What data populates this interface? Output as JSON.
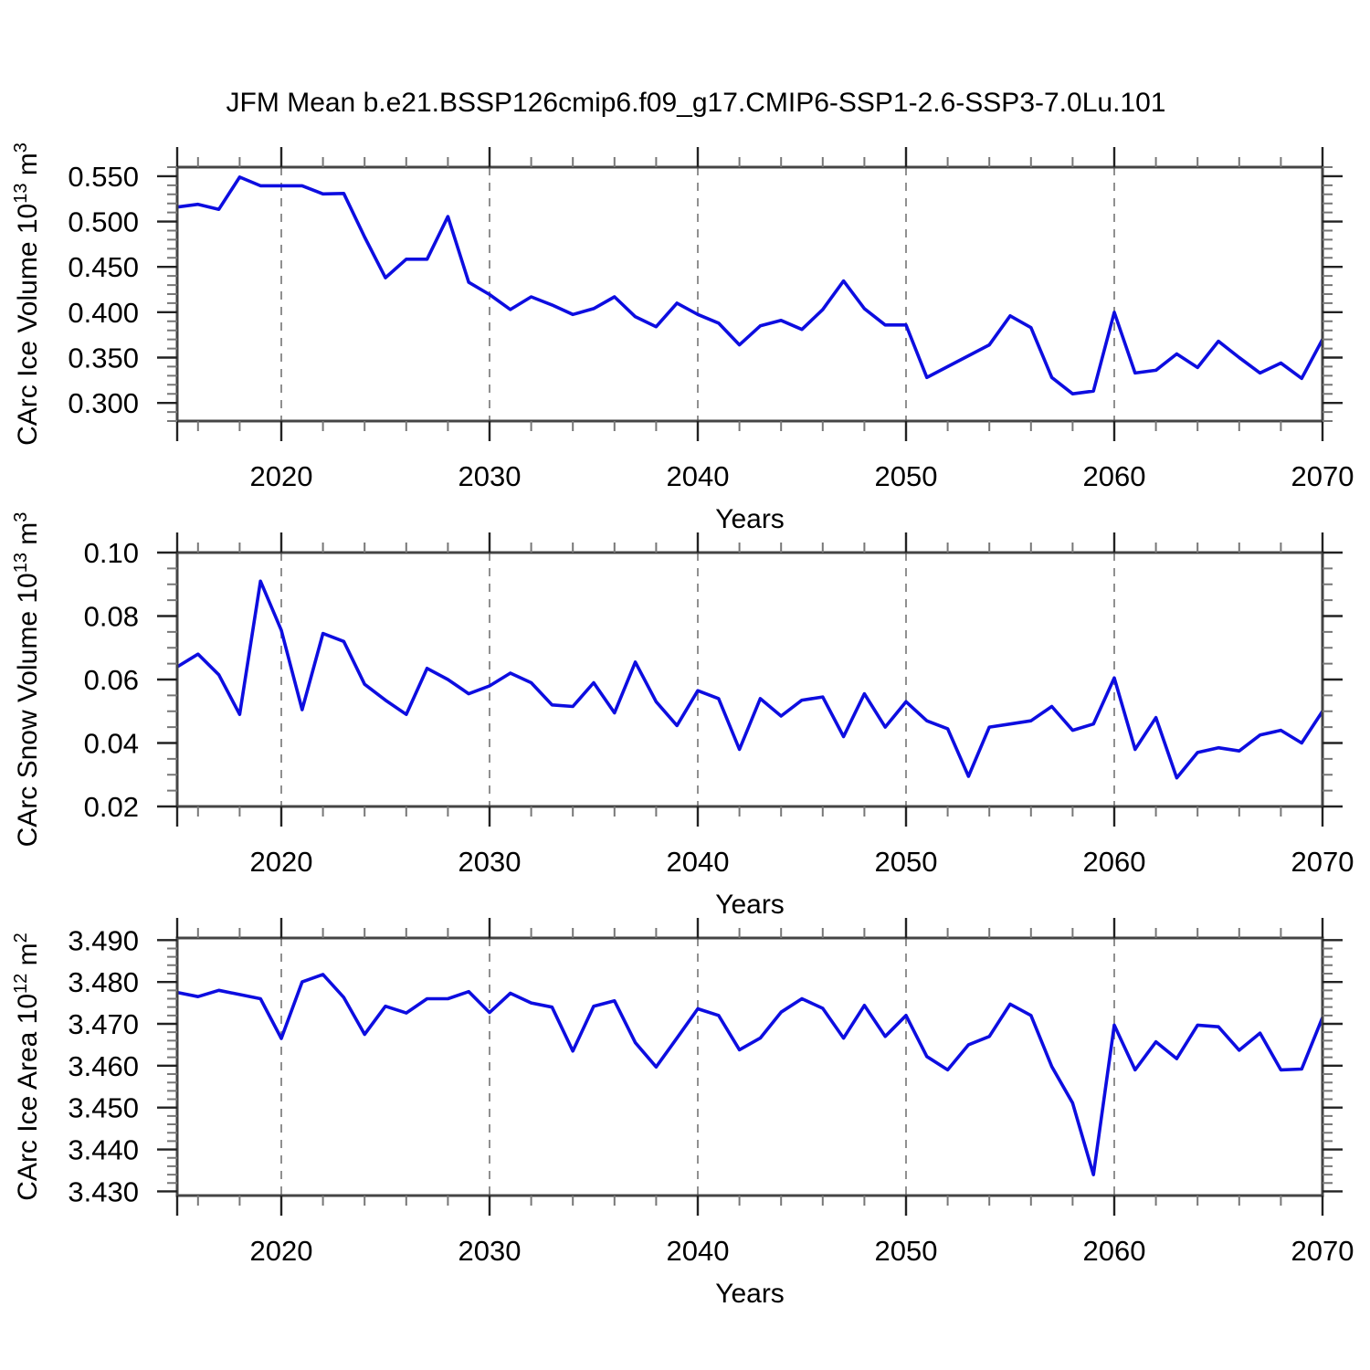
{
  "title": "JFM Mean b.e21.BSSP126cmip6.f09_g17.CMIP6-SSP1-2.6-SSP3-7.0Lu.101",
  "colors": {
    "line": "#0d0de0",
    "grid": "#909090",
    "frame": "#444444",
    "tick_major": "#222222",
    "tick_minor": "#777777",
    "text": "#000000"
  },
  "years": [
    2015,
    2016,
    2017,
    2018,
    2019,
    2020,
    2021,
    2022,
    2023,
    2024,
    2025,
    2026,
    2027,
    2028,
    2029,
    2030,
    2031,
    2032,
    2033,
    2034,
    2035,
    2036,
    2037,
    2038,
    2039,
    2040,
    2041,
    2042,
    2043,
    2044,
    2045,
    2046,
    2047,
    2048,
    2049,
    2050,
    2051,
    2052,
    2053,
    2054,
    2055,
    2056,
    2057,
    2058,
    2059,
    2060,
    2061,
    2062,
    2063,
    2064,
    2065,
    2066,
    2067,
    2068,
    2069,
    2070
  ],
  "chart_data": [
    {
      "type": "line",
      "name": "ice-volume",
      "ylabel_parts": [
        {
          "text": "CArc Ice Volume 10"
        },
        {
          "text": "13",
          "sup": true
        },
        {
          "text": " m"
        },
        {
          "text": "3",
          "sup": true
        }
      ],
      "xlabel": "Years",
      "x_range": [
        2015,
        2070
      ],
      "ylim": [
        0.28,
        0.56
      ],
      "yticks": {
        "values": [
          0.55,
          0.5,
          0.45,
          0.4,
          0.35,
          0.3
        ],
        "labels": [
          "0.550",
          "0.500",
          "0.450",
          "0.400",
          "0.350",
          "0.300"
        ]
      },
      "y_minor_step": 0.01,
      "xticks": {
        "values": [
          2020,
          2030,
          2040,
          2050,
          2060,
          2070
        ],
        "labels": [
          "2020",
          "2030",
          "2040",
          "2050",
          "2060",
          "2070"
        ]
      },
      "x_minor_step": 2,
      "edge_ticks": [
        2015
      ],
      "grid_years": [
        2020,
        2030,
        2040,
        2050,
        2060
      ],
      "legend": "none",
      "values": [
        0.516,
        0.519,
        0.5135,
        0.549,
        0.5395,
        0.5395,
        0.5395,
        0.5305,
        0.531,
        0.483,
        0.438,
        0.4585,
        0.4585,
        0.5055,
        0.433,
        0.4195,
        0.403,
        0.417,
        0.408,
        0.3975,
        0.404,
        0.417,
        0.395,
        0.384,
        0.41,
        0.3975,
        0.388,
        0.364,
        0.385,
        0.391,
        0.381,
        0.403,
        0.4345,
        0.404,
        0.386,
        0.386,
        0.328,
        0.34,
        0.352,
        0.364,
        0.396,
        0.383,
        0.328,
        0.31,
        0.313,
        0.4,
        0.333,
        0.336,
        0.354,
        0.339,
        0.368,
        0.35,
        0.333,
        0.344,
        0.327,
        0.37
      ]
    },
    {
      "type": "line",
      "name": "snow-volume",
      "ylabel_parts": [
        {
          "text": "CArc Snow Volume 10"
        },
        {
          "text": "13",
          "sup": true
        },
        {
          "text": " m"
        },
        {
          "text": "3",
          "sup": true
        }
      ],
      "xlabel": "Years",
      "x_range": [
        2015,
        2070
      ],
      "ylim": [
        0.02,
        0.1
      ],
      "yticks": {
        "values": [
          0.1,
          0.08,
          0.06,
          0.04,
          0.02
        ],
        "labels": [
          "0.10",
          "0.08",
          "0.06",
          "0.04",
          "0.02"
        ]
      },
      "y_minor_step": 0.005,
      "xticks": {
        "values": [
          2020,
          2030,
          2040,
          2050,
          2060,
          2070
        ],
        "labels": [
          "2020",
          "2030",
          "2040",
          "2050",
          "2060",
          "2070"
        ]
      },
      "x_minor_step": 2,
      "edge_ticks": [
        2015
      ],
      "grid_years": [
        2020,
        2030,
        2040,
        2050,
        2060
      ],
      "legend": "none",
      "values": [
        0.064,
        0.068,
        0.0615,
        0.049,
        0.091,
        0.0755,
        0.0505,
        0.0745,
        0.072,
        0.0585,
        0.0535,
        0.049,
        0.0635,
        0.06,
        0.0555,
        0.058,
        0.062,
        0.059,
        0.052,
        0.0515,
        0.059,
        0.0495,
        0.0655,
        0.053,
        0.0455,
        0.0565,
        0.054,
        0.038,
        0.054,
        0.0485,
        0.0535,
        0.0545,
        0.042,
        0.0555,
        0.045,
        0.053,
        0.047,
        0.0445,
        0.0295,
        0.045,
        0.046,
        0.047,
        0.0515,
        0.044,
        0.046,
        0.0605,
        0.038,
        0.048,
        0.029,
        0.037,
        0.0385,
        0.0375,
        0.0425,
        0.044,
        0.04,
        0.05
      ]
    },
    {
      "type": "line",
      "name": "ice-area",
      "ylabel_parts": [
        {
          "text": "CArc Ice Area 10"
        },
        {
          "text": "12",
          "sup": true
        },
        {
          "text": " m"
        },
        {
          "text": "2",
          "sup": true
        }
      ],
      "xlabel": "Years",
      "x_range": [
        2015,
        2070
      ],
      "ylim": [
        3.429,
        3.4905
      ],
      "yticks": {
        "values": [
          3.49,
          3.48,
          3.47,
          3.46,
          3.45,
          3.44,
          3.43
        ],
        "labels": [
          "3.490",
          "3.480",
          "3.470",
          "3.460",
          "3.450",
          "3.440",
          "3.430"
        ]
      },
      "y_minor_step": 0.002,
      "xticks": {
        "values": [
          2020,
          2030,
          2040,
          2050,
          2060,
          2070
        ],
        "labels": [
          "2020",
          "2030",
          "2040",
          "2050",
          "2060",
          "2070"
        ]
      },
      "x_minor_step": 2,
      "edge_ticks": [
        2015
      ],
      "grid_years": [
        2020,
        2030,
        2040,
        2050,
        2060
      ],
      "legend": "none",
      "values": [
        3.4775,
        3.4765,
        3.478,
        3.477,
        3.476,
        3.4665,
        3.48,
        3.4818,
        3.4763,
        3.4675,
        3.4742,
        3.4726,
        3.476,
        3.476,
        3.4777,
        3.4727,
        3.4773,
        3.475,
        3.474,
        3.4635,
        3.4742,
        3.4755,
        3.4655,
        3.4597,
        3.4666,
        3.4736,
        3.472,
        3.4638,
        3.4666,
        3.4728,
        3.476,
        3.4737,
        3.4666,
        3.4744,
        3.467,
        3.472,
        3.4622,
        3.459,
        3.465,
        3.467,
        3.4747,
        3.472,
        3.4598,
        3.4511,
        3.434,
        3.4697,
        3.459,
        3.4657,
        3.4617,
        3.4697,
        3.4693,
        3.4637,
        3.4678,
        3.459,
        3.4592,
        3.4715
      ]
    }
  ]
}
